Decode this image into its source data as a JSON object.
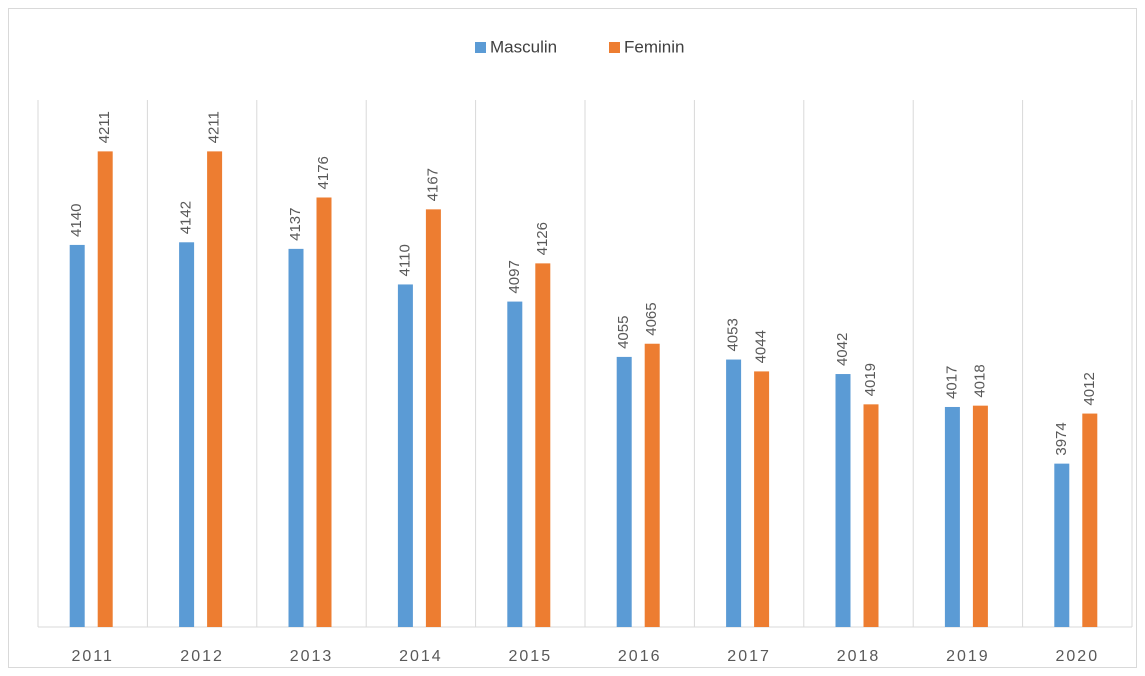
{
  "chart_data": {
    "type": "bar",
    "categories": [
      "2011",
      "2012",
      "2013",
      "2014",
      "2015",
      "2016",
      "2017",
      "2018",
      "2019",
      "2020"
    ],
    "series": [
      {
        "name": "Masculin",
        "color": "#5b9bd5",
        "values": [
          4140,
          4142,
          4137,
          4110,
          4097,
          4055,
          4053,
          4042,
          4017,
          3974
        ]
      },
      {
        "name": "Feminin",
        "color": "#ed7d31",
        "values": [
          4211,
          4211,
          4176,
          4167,
          4126,
          4065,
          4044,
          4019,
          4018,
          4012
        ]
      }
    ],
    "ylim": [
      3850,
      4250
    ],
    "legend": "top"
  }
}
